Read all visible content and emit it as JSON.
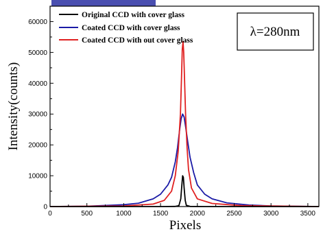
{
  "chart_data": {
    "type": "line",
    "xlabel": "Pixels",
    "ylabel": "Intensity(counts)",
    "xlim": [
      0,
      3650
    ],
    "ylim": [
      0,
      65000
    ],
    "x_ticks": [
      "0",
      "500",
      "1000",
      "1500",
      "2000",
      "2500",
      "3000",
      "3500"
    ],
    "y_ticks": [
      "0",
      "10000",
      "20000",
      "30000",
      "40000",
      "50000",
      "60000"
    ],
    "annotation": "λ=280nm",
    "grid": false,
    "legend_position": "top-left",
    "series": [
      {
        "name": "Original CCD with cover glass",
        "color": "#000000",
        "x": [
          0,
          1500,
          1700,
          1750,
          1775,
          1790,
          1800,
          1810,
          1820,
          1835,
          1850,
          1900,
          2100,
          3650
        ],
        "y": [
          0,
          0,
          50,
          300,
          2500,
          7000,
          10000,
          9500,
          6000,
          2000,
          400,
          50,
          0,
          0
        ]
      },
      {
        "name": "Coated CCD with cover glass",
        "color": "#1a1aa6",
        "x": [
          0,
          500,
          1000,
          1200,
          1400,
          1500,
          1600,
          1650,
          1700,
          1730,
          1760,
          1780,
          1800,
          1820,
          1840,
          1870,
          1900,
          1950,
          2000,
          2100,
          2200,
          2400,
          2700,
          3000,
          3650
        ],
        "y": [
          0,
          120,
          600,
          1100,
          2500,
          4000,
          7000,
          9500,
          14500,
          19000,
          25000,
          28500,
          30000,
          29000,
          26000,
          21000,
          16000,
          11000,
          7000,
          4000,
          2500,
          1200,
          500,
          200,
          0
        ]
      },
      {
        "name": "Coated CCD with out cover glass",
        "color": "#e02020",
        "x": [
          0,
          1000,
          1400,
          1550,
          1650,
          1700,
          1740,
          1770,
          1785,
          1795,
          1805,
          1815,
          1825,
          1840,
          1860,
          1880,
          1920,
          2000,
          2200,
          2600,
          3650
        ],
        "y": [
          0,
          200,
          800,
          2000,
          5000,
          10000,
          18000,
          30000,
          42000,
          51000,
          53500,
          50000,
          42000,
          30000,
          19000,
          12000,
          6000,
          2500,
          1000,
          300,
          0
        ]
      }
    ]
  }
}
